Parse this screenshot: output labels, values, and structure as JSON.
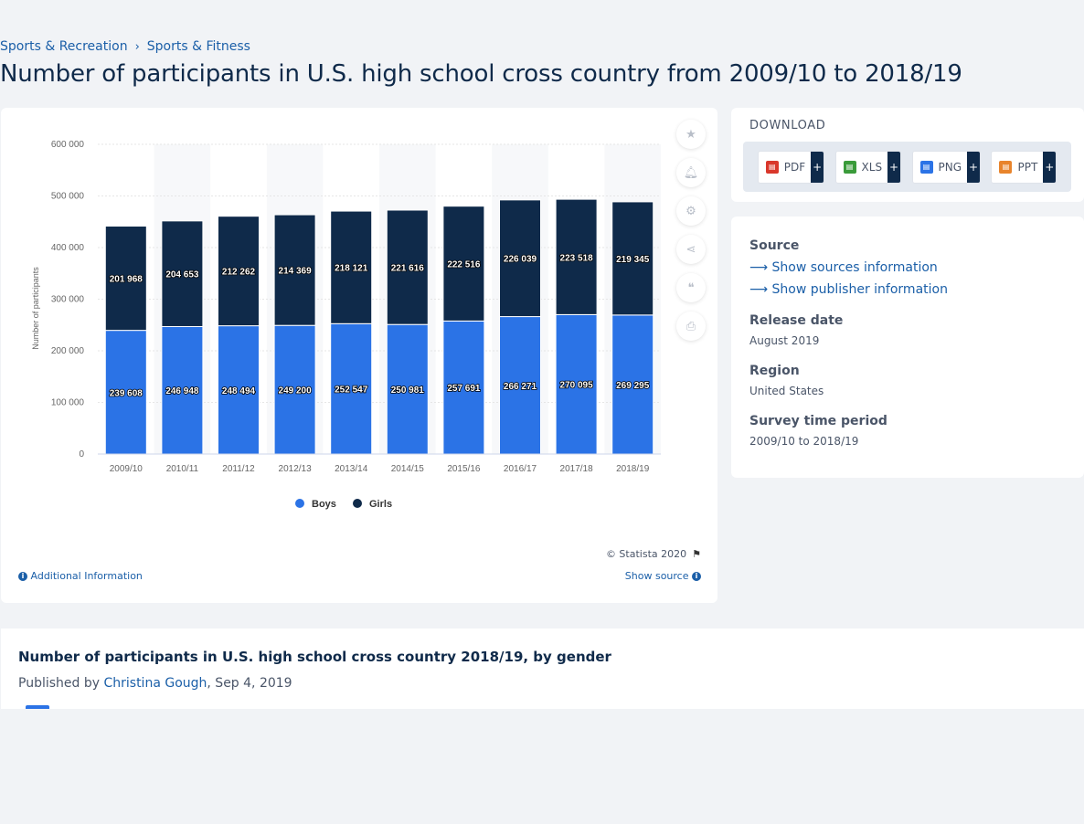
{
  "breadcrumb": {
    "items": [
      "Sports & Recreation",
      "Sports & Fitness"
    ],
    "separator": "›"
  },
  "page_title": "Number of participants in U.S. high school cross country from 2009/10 to 2018/19",
  "chart_data": {
    "type": "bar",
    "stacked": true,
    "categories": [
      "2009/10",
      "2010/11",
      "2011/12",
      "2012/13",
      "2013/14",
      "2014/15",
      "2015/16",
      "2016/17",
      "2017/18",
      "2018/19"
    ],
    "series": [
      {
        "name": "Boys",
        "color": "#2b73e6",
        "values": [
          239608,
          246948,
          248494,
          249200,
          252547,
          250981,
          257691,
          266271,
          270095,
          269295
        ],
        "labels": [
          "239 608",
          "246 948",
          "248 494",
          "249 200",
          "252 547",
          "250 981",
          "257 691",
          "266 271",
          "270 095",
          "269 295"
        ]
      },
      {
        "name": "Girls",
        "color": "#0f2a4a",
        "values": [
          201968,
          204653,
          212262,
          214369,
          218121,
          221616,
          222516,
          226039,
          223518,
          219345
        ],
        "labels": [
          "201 968",
          "204 653",
          "212 262",
          "214 369",
          "218 121",
          "221 616",
          "222 516",
          "226 039",
          "223 518",
          "219 345"
        ]
      }
    ],
    "ylabel": "Number of participants",
    "ylim": [
      0,
      600000
    ],
    "yticks": [
      0,
      100000,
      200000,
      300000,
      400000,
      500000,
      600000
    ],
    "ytick_labels": [
      "0",
      "100 000",
      "200 000",
      "300 000",
      "400 000",
      "500 000",
      "600 000"
    ],
    "grid": true,
    "legend": "bottom-center"
  },
  "chart_footer": {
    "copyright": "© Statista 2020",
    "additional_info": "Additional Information",
    "show_source": "Show source"
  },
  "side_tools": [
    "star-icon",
    "bell-icon",
    "gear-icon",
    "share-icon",
    "quote-icon",
    "print-icon"
  ],
  "download": {
    "title": "DOWNLOAD",
    "buttons": [
      {
        "label": "PDF",
        "color": "#d9372b"
      },
      {
        "label": "XLS",
        "color": "#3a9b3a"
      },
      {
        "label": "PNG",
        "color": "#2b73e6"
      },
      {
        "label": "PPT",
        "color": "#e8842c"
      }
    ],
    "plus": "+"
  },
  "source_panel": {
    "source_heading": "Source",
    "show_sources": "Show sources information",
    "show_publisher": "Show publisher information",
    "release_heading": "Release date",
    "release_value": "August 2019",
    "region_heading": "Region",
    "region_value": "United States",
    "survey_heading": "Survey time period",
    "survey_value": "2009/10 to 2018/19"
  },
  "related": {
    "title": "Number of participants in U.S. high school cross country 2018/19, by gender",
    "published_prefix": "Published by ",
    "author": "Christina Gough",
    "date": ", Sep 4, 2019"
  }
}
